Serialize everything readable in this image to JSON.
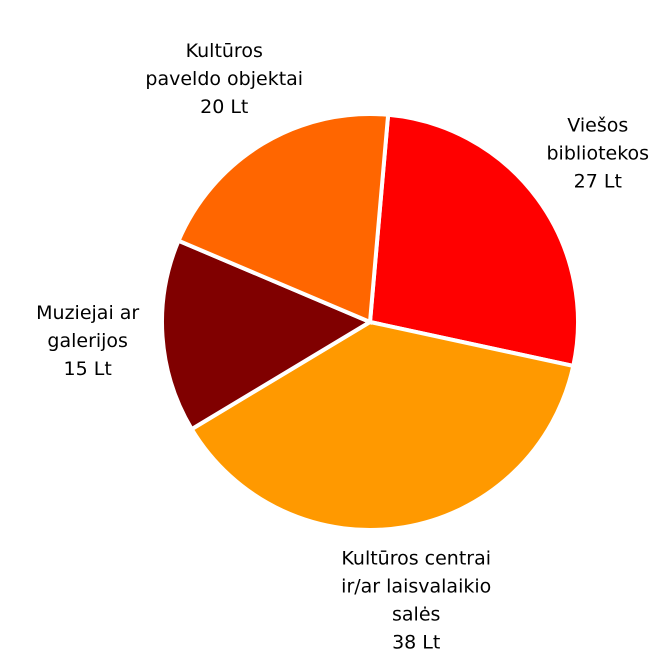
{
  "chart_data": {
    "type": "pie",
    "categories": [
      [
        "Viešos",
        "bibliotekos"
      ],
      [
        "Kultūros centrai",
        "ir/ar laisvalaikio",
        "salės"
      ],
      [
        "Muziejai ar",
        "galerijos"
      ],
      [
        "Kultūros",
        "paveldo objektai"
      ]
    ],
    "values": [
      27,
      38,
      15,
      20
    ],
    "value_labels": [
      "27 Lt",
      "38 Lt",
      "15 Lt",
      "20 Lt"
    ],
    "colors": [
      "#ff0000",
      "#ff9900",
      "#800000",
      "#ff6600"
    ]
  }
}
